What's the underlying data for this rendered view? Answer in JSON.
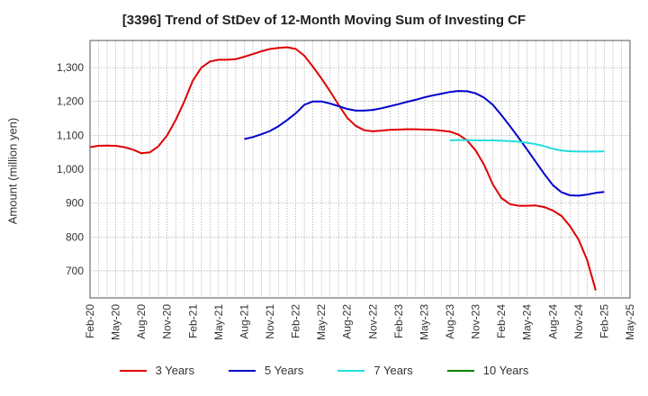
{
  "chart_data": {
    "type": "line",
    "title": "[3396]  Trend of StDev of 12-Month Moving Sum of Investing CF",
    "xlabel": "",
    "ylabel": "Amount (million yen)",
    "ylim": [
      620,
      1380
    ],
    "yticks": [
      700,
      800,
      900,
      1000,
      1100,
      1200,
      1300
    ],
    "ytick_labels": [
      "700",
      "800",
      "900",
      "1,000",
      "1,100",
      "1,200",
      "1,300"
    ],
    "x_start": "Feb-20",
    "x_end": "May-25",
    "xtick_labels": [
      "Feb-20",
      "May-20",
      "Aug-20",
      "Nov-20",
      "Feb-21",
      "May-21",
      "Aug-21",
      "Nov-21",
      "Feb-22",
      "May-22",
      "Aug-22",
      "Nov-22",
      "Feb-23",
      "May-23",
      "Aug-23",
      "Nov-23",
      "Feb-24",
      "May-24",
      "Aug-24",
      "Nov-24",
      "Feb-25",
      "May-25"
    ],
    "grid": true,
    "legend_position": "bottom",
    "series": [
      {
        "name": "3 Years",
        "color": "#e00000",
        "x": [
          "Feb-20",
          "Mar-20",
          "Apr-20",
          "May-20",
          "Jun-20",
          "Jul-20",
          "Aug-20",
          "Sep-20",
          "Oct-20",
          "Nov-20",
          "Dec-20",
          "Jan-21",
          "Feb-21",
          "Mar-21",
          "Apr-21",
          "May-21",
          "Jun-21",
          "Jul-21",
          "Aug-21",
          "Sep-21",
          "Oct-21",
          "Nov-21",
          "Dec-21",
          "Jan-22",
          "Feb-22",
          "Mar-22",
          "Apr-22",
          "May-22",
          "Jun-22",
          "Jul-22",
          "Aug-22",
          "Sep-22",
          "Oct-22",
          "Nov-22",
          "Dec-22",
          "Jan-23",
          "Feb-23",
          "Mar-23",
          "Apr-23",
          "May-23",
          "Jun-23",
          "Jul-23",
          "Aug-23",
          "Sep-23",
          "Oct-23",
          "Nov-23",
          "Dec-23",
          "Jan-24",
          "Feb-24",
          "Mar-24",
          "Apr-24",
          "May-24",
          "Jun-24",
          "Jul-24",
          "Aug-24",
          "Sep-24",
          "Oct-24",
          "Nov-24",
          "Dec-24",
          "Jan-25",
          "Feb-25"
        ],
        "values": [
          1065,
          1069,
          1070,
          1069,
          1065,
          1058,
          1047,
          1050,
          1068,
          1100,
          1145,
          1200,
          1262,
          1300,
          1318,
          1323,
          1323,
          1325,
          1332,
          1340,
          1348,
          1355,
          1358,
          1360,
          1355,
          1335,
          1303,
          1268,
          1230,
          1190,
          1152,
          1128,
          1115,
          1112,
          1114,
          1116,
          1117,
          1118,
          1118,
          1117,
          1116,
          1114,
          1111,
          1102,
          1085,
          1055,
          1012,
          955,
          915,
          897,
          892,
          892,
          893,
          888,
          878,
          862,
          832,
          792,
          732,
          642,
          null
        ]
      },
      {
        "name": "5 Years",
        "color": "#0000cc",
        "x": [
          "Aug-21",
          "Sep-21",
          "Oct-21",
          "Nov-21",
          "Dec-21",
          "Jan-22",
          "Feb-22",
          "Mar-22",
          "Apr-22",
          "May-22",
          "Jun-22",
          "Jul-22",
          "Aug-22",
          "Sep-22",
          "Oct-22",
          "Nov-22",
          "Dec-22",
          "Jan-23",
          "Feb-23",
          "Mar-23",
          "Apr-23",
          "May-23",
          "Jun-23",
          "Jul-23",
          "Aug-23",
          "Sep-23",
          "Oct-23",
          "Nov-23",
          "Dec-23",
          "Jan-24",
          "Feb-24",
          "Mar-24",
          "Apr-24",
          "May-24",
          "Jun-24",
          "Jul-24",
          "Aug-24",
          "Sep-24",
          "Oct-24",
          "Nov-24",
          "Dec-24",
          "Jan-25",
          "Feb-25"
        ],
        "values": [
          1089,
          1095,
          1103,
          1113,
          1127,
          1145,
          1165,
          1190,
          1200,
          1200,
          1194,
          1186,
          1178,
          1173,
          1173,
          1175,
          1180,
          1186,
          1192,
          1199,
          1205,
          1212,
          1218,
          1223,
          1228,
          1231,
          1230,
          1224,
          1211,
          1190,
          1160,
          1127,
          1093,
          1058,
          1022,
          986,
          953,
          932,
          923,
          922,
          925,
          930,
          933
        ]
      },
      {
        "name": "7 Years",
        "color": "#22dddd",
        "x": [
          "Aug-23",
          "Sep-23",
          "Oct-23",
          "Nov-23",
          "Dec-23",
          "Jan-24",
          "Feb-24",
          "Mar-24",
          "Apr-24",
          "May-24",
          "Jun-24",
          "Jul-24",
          "Aug-24",
          "Sep-24",
          "Oct-24",
          "Nov-24",
          "Dec-24",
          "Jan-25",
          "Feb-25"
        ],
        "values": [
          1085,
          1086,
          1086,
          1085,
          1085,
          1085,
          1084,
          1083,
          1081,
          1078,
          1074,
          1068,
          1060,
          1055,
          1053,
          1052,
          1052,
          1052,
          1053
        ]
      },
      {
        "name": "10 Years",
        "color": "#008000",
        "x": [],
        "values": []
      }
    ]
  }
}
